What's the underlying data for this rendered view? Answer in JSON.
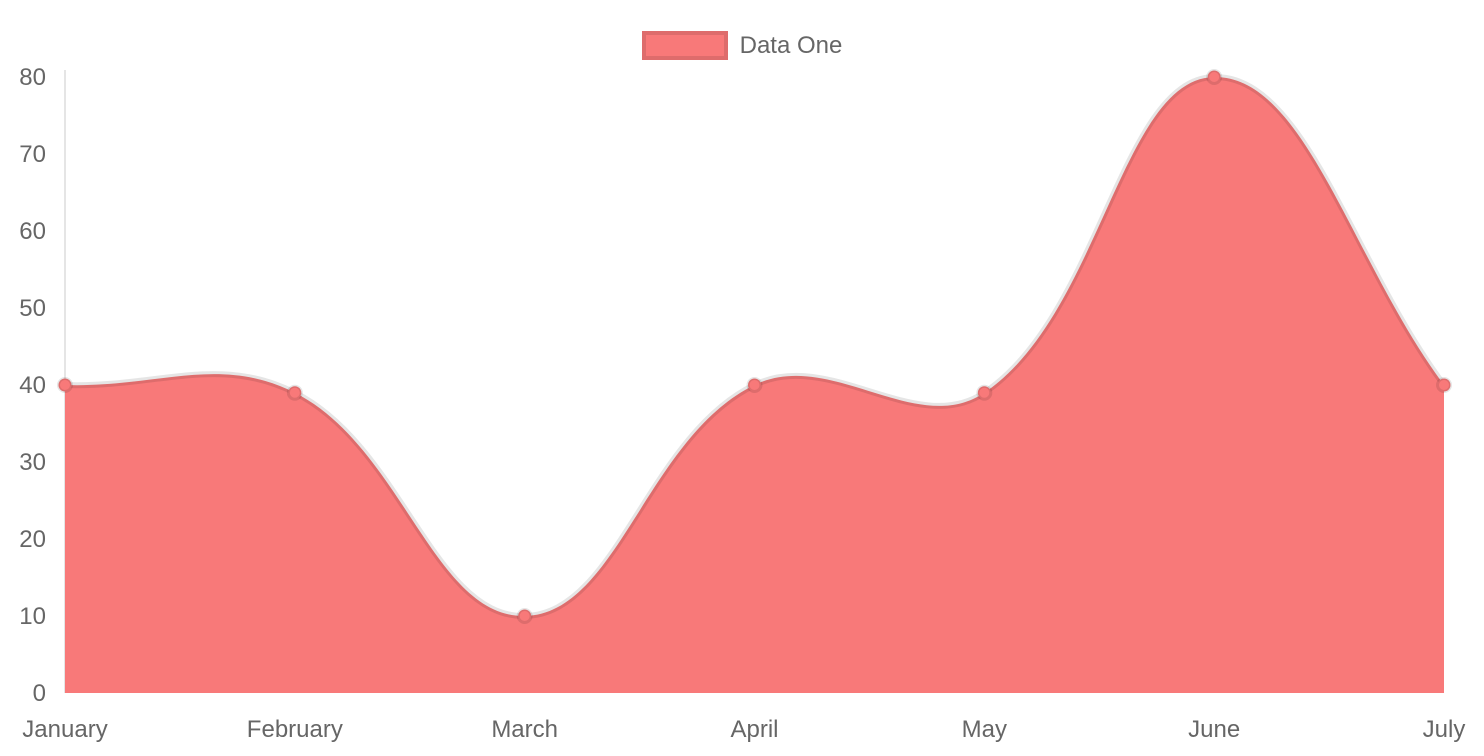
{
  "legend": {
    "label": "Data One"
  },
  "chart_data": {
    "type": "area",
    "categories": [
      "January",
      "February",
      "March",
      "April",
      "May",
      "June",
      "July"
    ],
    "series": [
      {
        "name": "Data One",
        "values": [
          40,
          39,
          10,
          40,
          39,
          80,
          40
        ]
      }
    ],
    "title": "",
    "xlabel": "",
    "ylabel": "",
    "ylim": [
      0,
      80
    ],
    "yticks": [
      0,
      10,
      20,
      30,
      40,
      50,
      60,
      70,
      80
    ],
    "grid": false,
    "legend_position": "top-center",
    "line_tension": 0.4,
    "colors": {
      "fill": "#f87979",
      "line_border": "rgba(0,0,0,0.1)",
      "point_fill": "#f87979",
      "point_border": "rgba(0,0,0,0.1)",
      "axis_line": "rgba(0,0,0,0.1)",
      "tick_text": "#666666",
      "background": "#ffffff"
    }
  }
}
